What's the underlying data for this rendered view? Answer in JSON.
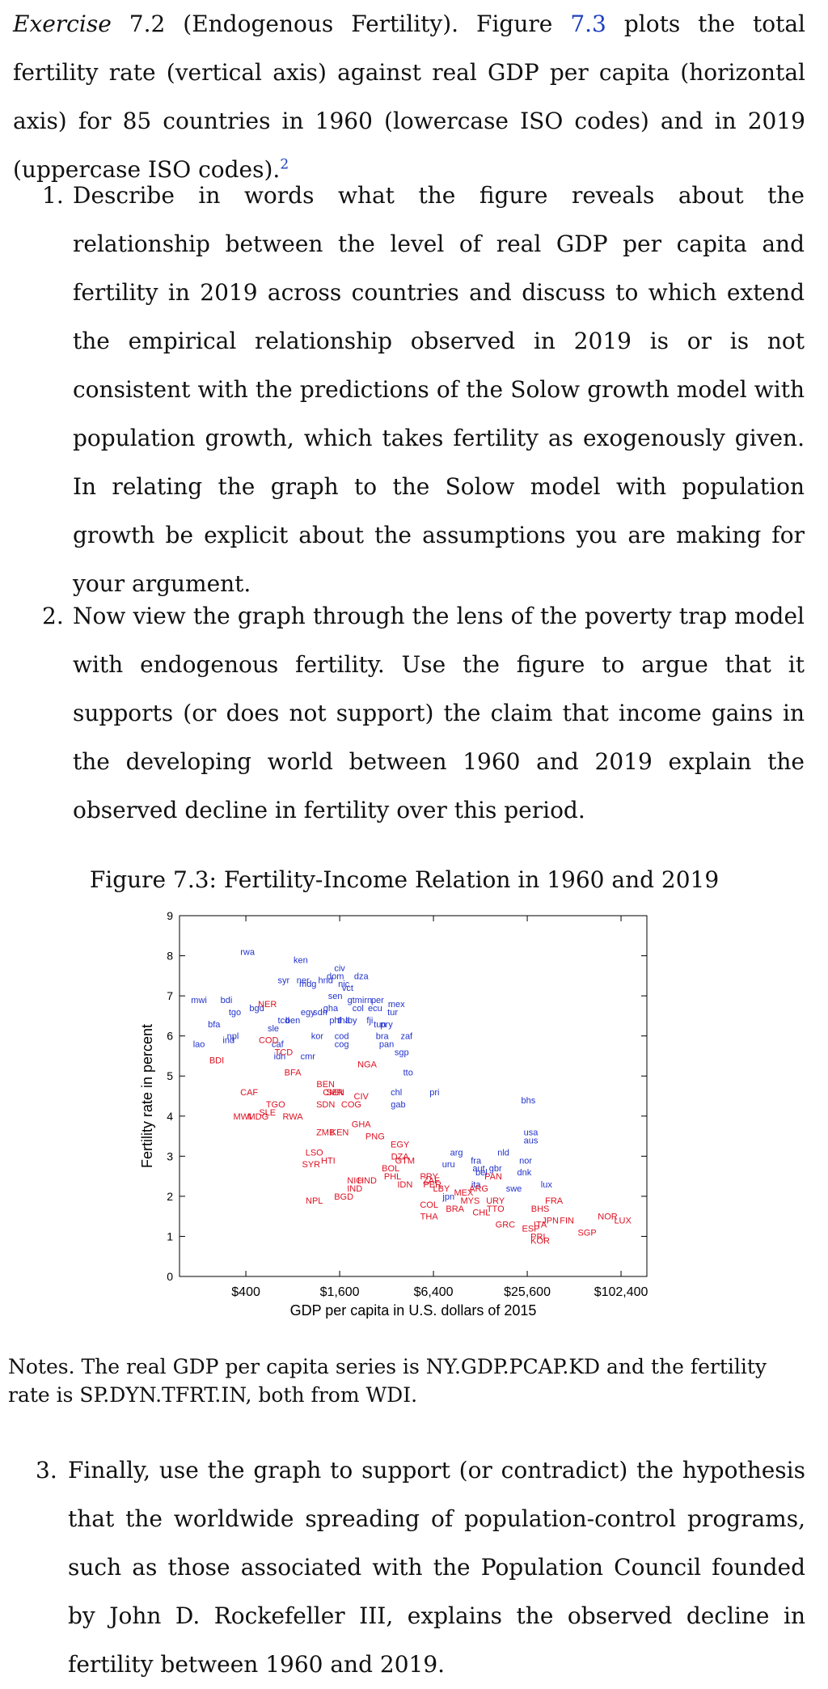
{
  "exercise": {
    "label": "Exercise",
    "number": "7.2",
    "title": "(Endogenous Fertility). Figure",
    "figure_ref": "7.3",
    "text": "plots the total fertility rate (vertical axis) against real GDP per capita (horizontal axis) for 85 countries in 1960 (lowercase ISO codes) and in 2019 (uppercase ISO codes).",
    "footnote": "2"
  },
  "questions": [
    {
      "num": "1.",
      "text": "Describe in words what the figure reveals about the relationship between the level of real GDP per capita and fertility in 2019 across countries and discuss to which extend the empirical relationship observed in 2019 is or is not consistent with the predictions of the Solow growth model with population growth, which takes fertility as exogenously given. In relating the graph to the Solow model with population growth be explicit about the assumptions you are making for your argument."
    },
    {
      "num": "2.",
      "text": "Now view the graph through the lens of the poverty trap model with endogenous fertility. Use the figure to argue that it supports (or does not support) the claim that income gains in the developing world between 1960 and 2019 explain the observed decline in fertility over this period."
    },
    {
      "num": "3.",
      "text": "Finally, use the graph to support (or contradict) the hypothesis that the worldwide spreading of population-control programs, such as those associated with the Population Council founded by John D. Rockefeller III, explains the observed decline in fertility between 1960 and 2019."
    }
  ],
  "figure": {
    "caption": "Figure 7.3: Fertility-Income Relation in 1960 and 2019"
  },
  "notes": "Notes. The real GDP per capita series is NY.GDP.PCAP.KD and the fertility rate is SP.DYN.TFRT.IN, both from WDI.",
  "chart_data": {
    "type": "scatter",
    "xlabel": "GDP per capita in U.S. dollars of 2015",
    "ylabel": "Fertility rate in percent",
    "x_scale": "log",
    "xlim": [
      150,
      150000
    ],
    "ylim": [
      0,
      9
    ],
    "x_ticks": [
      {
        "value": 400,
        "label": "$400"
      },
      {
        "value": 1600,
        "label": "$1,600"
      },
      {
        "value": 6400,
        "label": "$6,400"
      },
      {
        "value": 25600,
        "label": "$25,600"
      },
      {
        "value": 102400,
        "label": "$102,400"
      }
    ],
    "y_ticks": [
      0,
      1,
      2,
      3,
      4,
      5,
      6,
      7,
      8,
      9
    ],
    "colors": {
      "1960": "#2233cc",
      "2019": "#dd1122"
    },
    "series": [
      {
        "key": "1960",
        "points": [
          {
            "label": "rwa",
            "x": 410,
            "y": 8.1
          },
          {
            "label": "ken",
            "x": 900,
            "y": 7.9
          },
          {
            "label": "syr",
            "x": 700,
            "y": 7.4
          },
          {
            "label": "ner",
            "x": 930,
            "y": 7.4
          },
          {
            "label": "mdg",
            "x": 1000,
            "y": 7.3
          },
          {
            "label": "hnd",
            "x": 1300,
            "y": 7.4
          },
          {
            "label": "dom",
            "x": 1500,
            "y": 7.5
          },
          {
            "label": "civ",
            "x": 1600,
            "y": 7.7
          },
          {
            "label": "nic",
            "x": 1700,
            "y": 7.3
          },
          {
            "label": "dza",
            "x": 2200,
            "y": 7.5
          },
          {
            "label": "vct",
            "x": 1800,
            "y": 7.2
          },
          {
            "label": "mwi",
            "x": 200,
            "y": 6.9
          },
          {
            "label": "bdi",
            "x": 300,
            "y": 6.9
          },
          {
            "label": "tgo",
            "x": 340,
            "y": 6.6
          },
          {
            "label": "bgd",
            "x": 470,
            "y": 6.7
          },
          {
            "label": "egy",
            "x": 1000,
            "y": 6.6
          },
          {
            "label": "sdn",
            "x": 1200,
            "y": 6.6
          },
          {
            "label": "gha",
            "x": 1400,
            "y": 6.7
          },
          {
            "label": "sen",
            "x": 1500,
            "y": 7.0
          },
          {
            "label": "gtm",
            "x": 2000,
            "y": 6.9
          },
          {
            "label": "irn",
            "x": 2400,
            "y": 6.9
          },
          {
            "label": "per",
            "x": 2800,
            "y": 6.9
          },
          {
            "label": "col",
            "x": 2100,
            "y": 6.7
          },
          {
            "label": "ecu",
            "x": 2700,
            "y": 6.7
          },
          {
            "label": "mex",
            "x": 3700,
            "y": 6.8
          },
          {
            "label": "tur",
            "x": 3500,
            "y": 6.6
          },
          {
            "label": "bfa",
            "x": 250,
            "y": 6.3
          },
          {
            "label": "ben",
            "x": 800,
            "y": 6.4
          },
          {
            "label": "tcd",
            "x": 700,
            "y": 6.4
          },
          {
            "label": "phl",
            "x": 1500,
            "y": 6.4
          },
          {
            "label": "tha",
            "x": 1700,
            "y": 6.4
          },
          {
            "label": "lby",
            "x": 1900,
            "y": 6.4
          },
          {
            "label": "fji",
            "x": 2500,
            "y": 6.4
          },
          {
            "label": "tun",
            "x": 2900,
            "y": 6.3
          },
          {
            "label": "pry",
            "x": 3200,
            "y": 6.3
          },
          {
            "label": "lao",
            "x": 200,
            "y": 5.8
          },
          {
            "label": "ind",
            "x": 310,
            "y": 5.9
          },
          {
            "label": "npl",
            "x": 330,
            "y": 6.0
          },
          {
            "label": "sle",
            "x": 600,
            "y": 6.2
          },
          {
            "label": "kor",
            "x": 1150,
            "y": 6.0
          },
          {
            "label": "cod",
            "x": 1650,
            "y": 6.0
          },
          {
            "label": "cog",
            "x": 1650,
            "y": 5.8
          },
          {
            "label": "bra",
            "x": 3000,
            "y": 6.0
          },
          {
            "label": "zaf",
            "x": 4300,
            "y": 6.0
          },
          {
            "label": "pan",
            "x": 3200,
            "y": 5.8
          },
          {
            "label": "sgp",
            "x": 4000,
            "y": 5.6
          },
          {
            "label": "caf",
            "x": 640,
            "y": 5.8
          },
          {
            "label": "idn",
            "x": 660,
            "y": 5.5
          },
          {
            "label": "cmr",
            "x": 1000,
            "y": 5.5
          },
          {
            "label": "tto",
            "x": 4400,
            "y": 5.1
          },
          {
            "label": "chl",
            "x": 3700,
            "y": 4.6
          },
          {
            "label": "gab",
            "x": 3800,
            "y": 4.3
          },
          {
            "label": "pri",
            "x": 6500,
            "y": 4.6
          },
          {
            "label": "bhs",
            "x": 26000,
            "y": 4.4
          },
          {
            "label": "usa",
            "x": 27000,
            "y": 3.6
          },
          {
            "label": "aus",
            "x": 27000,
            "y": 3.4
          },
          {
            "label": "arg",
            "x": 9000,
            "y": 3.1
          },
          {
            "label": "nld",
            "x": 18000,
            "y": 3.1
          },
          {
            "label": "fra",
            "x": 12000,
            "y": 2.9
          },
          {
            "label": "aut",
            "x": 12500,
            "y": 2.7
          },
          {
            "label": "gbr",
            "x": 16000,
            "y": 2.7
          },
          {
            "label": "nor",
            "x": 25000,
            "y": 2.9
          },
          {
            "label": "dnk",
            "x": 24500,
            "y": 2.6
          },
          {
            "label": "bel",
            "x": 13000,
            "y": 2.6
          },
          {
            "label": "lux",
            "x": 34000,
            "y": 2.3
          },
          {
            "label": "swe",
            "x": 21000,
            "y": 2.2
          },
          {
            "label": "uru",
            "x": 8000,
            "y": 2.8
          },
          {
            "label": "jpn",
            "x": 8000,
            "y": 2.0
          },
          {
            "label": "ita",
            "x": 12000,
            "y": 2.3
          }
        ]
      },
      {
        "key": "2019",
        "points": [
          {
            "label": "NER",
            "x": 550,
            "y": 6.8
          },
          {
            "label": "COD",
            "x": 560,
            "y": 5.9
          },
          {
            "label": "TCD",
            "x": 700,
            "y": 5.6
          },
          {
            "label": "BDI",
            "x": 260,
            "y": 5.4
          },
          {
            "label": "BFA",
            "x": 800,
            "y": 5.1
          },
          {
            "label": "NGA",
            "x": 2400,
            "y": 5.3
          },
          {
            "label": "CAF",
            "x": 420,
            "y": 4.6
          },
          {
            "label": "BEN",
            "x": 1300,
            "y": 4.8
          },
          {
            "label": "CMR",
            "x": 1450,
            "y": 4.6
          },
          {
            "label": "SEN",
            "x": 1500,
            "y": 4.6
          },
          {
            "label": "CIV",
            "x": 2200,
            "y": 4.5
          },
          {
            "label": "SDN",
            "x": 1300,
            "y": 4.3
          },
          {
            "label": "COG",
            "x": 1900,
            "y": 4.3
          },
          {
            "label": "TGO",
            "x": 620,
            "y": 4.3
          },
          {
            "label": "MWI",
            "x": 380,
            "y": 4.0
          },
          {
            "label": "MDG",
            "x": 480,
            "y": 4.0
          },
          {
            "label": "SLE",
            "x": 550,
            "y": 4.1
          },
          {
            "label": "RWA",
            "x": 800,
            "y": 4.0
          },
          {
            "label": "GHA",
            "x": 2200,
            "y": 3.8
          },
          {
            "label": "ZMB",
            "x": 1300,
            "y": 3.6
          },
          {
            "label": "KEN",
            "x": 1600,
            "y": 3.6
          },
          {
            "label": "PNG",
            "x": 2700,
            "y": 3.5
          },
          {
            "label": "LSO",
            "x": 1100,
            "y": 3.1
          },
          {
            "label": "SYR",
            "x": 1050,
            "y": 2.8
          },
          {
            "label": "HTI",
            "x": 1350,
            "y": 2.9
          },
          {
            "label": "EGY",
            "x": 3900,
            "y": 3.3
          },
          {
            "label": "DZA",
            "x": 3900,
            "y": 3.0
          },
          {
            "label": "GTM",
            "x": 4200,
            "y": 2.9
          },
          {
            "label": "PRY",
            "x": 6000,
            "y": 2.5
          },
          {
            "label": "HND",
            "x": 2400,
            "y": 2.4
          },
          {
            "label": "NIC",
            "x": 2000,
            "y": 2.4
          },
          {
            "label": "IND",
            "x": 2000,
            "y": 2.2
          },
          {
            "label": "BOL",
            "x": 3400,
            "y": 2.7
          },
          {
            "label": "PHL",
            "x": 3500,
            "y": 2.5
          },
          {
            "label": "BGD",
            "x": 1700,
            "y": 2.0
          },
          {
            "label": "NPL",
            "x": 1100,
            "y": 1.9
          },
          {
            "label": "IDN",
            "x": 4200,
            "y": 2.3
          },
          {
            "label": "ZAF",
            "x": 6200,
            "y": 2.4
          },
          {
            "label": "PER",
            "x": 6300,
            "y": 2.3
          },
          {
            "label": "LBY",
            "x": 7200,
            "y": 2.2
          },
          {
            "label": "ARG",
            "x": 12500,
            "y": 2.2
          },
          {
            "label": "PAN",
            "x": 15500,
            "y": 2.5
          },
          {
            "label": "MEX",
            "x": 10000,
            "y": 2.1
          },
          {
            "label": "MYS",
            "x": 11000,
            "y": 1.9
          },
          {
            "label": "URY",
            "x": 16000,
            "y": 1.9
          },
          {
            "label": "COL",
            "x": 6000,
            "y": 1.8
          },
          {
            "label": "BRA",
            "x": 8800,
            "y": 1.7
          },
          {
            "label": "CHL",
            "x": 13000,
            "y": 1.6
          },
          {
            "label": "TTO",
            "x": 16000,
            "y": 1.7
          },
          {
            "label": "THA",
            "x": 6000,
            "y": 1.5
          },
          {
            "label": "BHS",
            "x": 31000,
            "y": 1.7
          },
          {
            "label": "FRA",
            "x": 38000,
            "y": 1.9
          },
          {
            "label": "NOR",
            "x": 84000,
            "y": 1.5
          },
          {
            "label": "LUX",
            "x": 105000,
            "y": 1.4
          },
          {
            "label": "SGP",
            "x": 62000,
            "y": 1.1
          },
          {
            "label": "GRC",
            "x": 18500,
            "y": 1.3
          },
          {
            "label": "ESP",
            "x": 27000,
            "y": 1.2
          },
          {
            "label": "ITA",
            "x": 31000,
            "y": 1.3
          },
          {
            "label": "FIN",
            "x": 46000,
            "y": 1.4
          },
          {
            "label": "JPN",
            "x": 36000,
            "y": 1.4
          },
          {
            "label": "KOR",
            "x": 31000,
            "y": 0.9
          },
          {
            "label": "PRI",
            "x": 30000,
            "y": 1.0
          }
        ]
      }
    ]
  }
}
